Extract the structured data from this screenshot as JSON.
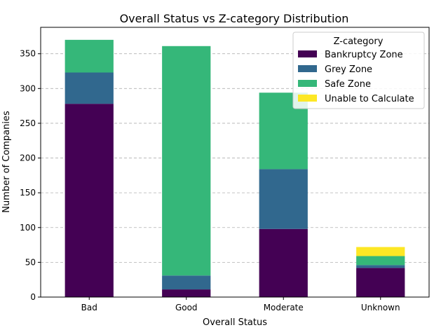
{
  "chart_data": {
    "type": "bar",
    "stacked": true,
    "title": "Overall Status vs Z-category Distribution",
    "xlabel": "Overall Status",
    "ylabel": "Number of Companies",
    "categories": [
      "Bad",
      "Good",
      "Moderate",
      "Unknown"
    ],
    "ylim": [
      0,
      388
    ],
    "yticks": [
      0,
      50,
      100,
      150,
      200,
      250,
      300,
      350
    ],
    "grid": "y-dashed",
    "legend": {
      "title": "Z-category",
      "placement": "top-right"
    },
    "series": [
      {
        "name": "Bankruptcy Zone",
        "color": "#440154",
        "values": [
          278,
          11,
          98,
          42
        ]
      },
      {
        "name": "Grey Zone",
        "color": "#31688e",
        "values": [
          45,
          20,
          86,
          4
        ]
      },
      {
        "name": "Safe Zone",
        "color": "#35b779",
        "values": [
          47,
          330,
          110,
          13
        ]
      },
      {
        "name": "Unable to Calculate",
        "color": "#fde725",
        "values": [
          0,
          0,
          0,
          13
        ]
      }
    ]
  }
}
